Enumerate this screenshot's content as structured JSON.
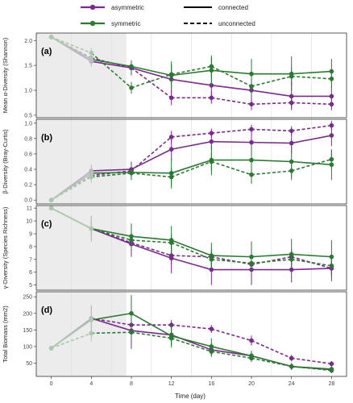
{
  "legend": {
    "asymmetric": "asymmetric",
    "symmetric": "symmetric",
    "connected": "connected",
    "unconnected": "unconnected"
  },
  "colors": {
    "asymmetric": "#7b2a8e",
    "symmetric": "#2a7a32",
    "asymmetric_faded": "#c4a8cc",
    "symmetric_faded": "#a9c9ab",
    "shade": "#ececec",
    "panel_border": "#333333",
    "grid": "#dddddd"
  },
  "xlabel": "Time (day)",
  "chart_data": [
    {
      "type": "line",
      "panel_label": "(a)",
      "ylabel": "Mean α-Diversity (Shannon)",
      "x": [
        0,
        4,
        8,
        12,
        16,
        20,
        24,
        28
      ],
      "xlim": [
        -1.5,
        29.5
      ],
      "ylim": [
        0.45,
        2.15
      ],
      "yticks": [
        0.5,
        1.0,
        1.5,
        2.0
      ],
      "ytick_labels": [
        "0.5",
        "1.0",
        "1.5",
        "2.0"
      ],
      "shaded_until_x": 7.5,
      "series": [
        {
          "name": "asymmetric",
          "style": "connected",
          "values": [
            2.07,
            1.58,
            1.45,
            1.22,
            1.1,
            1.0,
            0.88,
            0.88
          ],
          "errors": [
            0.02,
            0.1,
            0.12,
            0.28,
            0.3,
            0.25,
            0.28,
            0.22
          ]
        },
        {
          "name": "asymmetric",
          "style": "unconnected",
          "values": [
            2.07,
            1.65,
            1.45,
            0.85,
            0.85,
            0.72,
            0.75,
            0.72
          ],
          "errors": [
            0.02,
            0.12,
            0.15,
            0.15,
            0.12,
            0.12,
            0.12,
            0.12
          ]
        },
        {
          "name": "symmetric",
          "style": "connected",
          "values": [
            2.07,
            1.62,
            1.48,
            1.3,
            1.4,
            1.33,
            1.33,
            1.38
          ],
          "errors": [
            0.02,
            0.1,
            0.12,
            0.28,
            0.3,
            0.3,
            0.35,
            0.25
          ]
        },
        {
          "name": "symmetric",
          "style": "unconnected",
          "values": [
            2.07,
            1.75,
            1.05,
            1.32,
            1.48,
            1.08,
            1.28,
            1.23
          ],
          "errors": [
            0.02,
            0.1,
            0.12,
            0.2,
            0.18,
            0.2,
            0.18,
            0.18
          ]
        }
      ]
    },
    {
      "type": "line",
      "panel_label": "(b)",
      "ylabel": "β-Diversity (Bray-Curtis)",
      "x": [
        0,
        4,
        8,
        12,
        16,
        20,
        24,
        28
      ],
      "xlim": [
        -1.5,
        29.5
      ],
      "ylim": [
        -0.05,
        1.05
      ],
      "yticks": [
        0.0,
        0.2,
        0.4,
        0.6,
        0.8,
        1.0
      ],
      "ytick_labels": [
        "0.0",
        "0.2",
        "0.4",
        "0.6",
        "0.8",
        "1.0"
      ],
      "shaded_until_x": 7.5,
      "series": [
        {
          "name": "asymmetric",
          "style": "connected",
          "values": [
            0.0,
            0.38,
            0.4,
            0.66,
            0.76,
            0.75,
            0.74,
            0.84
          ],
          "errors": [
            0.01,
            0.08,
            0.1,
            0.15,
            0.12,
            0.14,
            0.14,
            0.14
          ]
        },
        {
          "name": "asymmetric",
          "style": "unconnected",
          "values": [
            0.0,
            0.32,
            0.38,
            0.82,
            0.87,
            0.92,
            0.9,
            0.97
          ],
          "errors": [
            0.01,
            0.06,
            0.06,
            0.08,
            0.06,
            0.06,
            0.06,
            0.06
          ]
        },
        {
          "name": "symmetric",
          "style": "connected",
          "values": [
            0.0,
            0.35,
            0.36,
            0.35,
            0.52,
            0.52,
            0.5,
            0.46
          ],
          "errors": [
            0.01,
            0.08,
            0.1,
            0.2,
            0.2,
            0.2,
            0.2,
            0.2
          ]
        },
        {
          "name": "symmetric",
          "style": "unconnected",
          "values": [
            0.0,
            0.3,
            0.35,
            0.3,
            0.5,
            0.33,
            0.38,
            0.53
          ],
          "errors": [
            0.01,
            0.07,
            0.08,
            0.12,
            0.12,
            0.12,
            0.12,
            0.12
          ]
        }
      ]
    },
    {
      "type": "line",
      "panel_label": "(c)",
      "ylabel": "γ-Diversity (Species Richness)",
      "x": [
        0,
        4,
        8,
        12,
        16,
        20,
        24,
        28
      ],
      "xlim": [
        -1.5,
        29.5
      ],
      "ylim": [
        4.6,
        11.2
      ],
      "yticks": [
        5,
        6,
        7,
        8,
        9,
        10,
        11
      ],
      "ytick_labels": [
        "5",
        "6",
        "7",
        "8",
        "9",
        "10",
        "11"
      ],
      "shaded_until_x": 7.5,
      "series": [
        {
          "name": "asymmetric",
          "style": "connected",
          "values": [
            11.0,
            9.4,
            8.2,
            7.1,
            6.2,
            6.2,
            6.2,
            6.3
          ],
          "errors": [
            0.05,
            1.0,
            1.0,
            1.2,
            1.2,
            1.2,
            1.0,
            1.0
          ]
        },
        {
          "name": "asymmetric",
          "style": "unconnected",
          "values": [
            11.0,
            9.4,
            8.3,
            7.3,
            7.2,
            6.6,
            7.2,
            6.3
          ],
          "errors": [
            0.05,
            0.6,
            0.6,
            0.7,
            0.6,
            0.6,
            0.6,
            0.6
          ]
        },
        {
          "name": "symmetric",
          "style": "connected",
          "values": [
            11.0,
            9.4,
            8.8,
            8.5,
            7.3,
            7.2,
            7.4,
            7.2
          ],
          "errors": [
            0.05,
            1.0,
            1.0,
            1.1,
            1.0,
            1.2,
            1.2,
            1.3
          ]
        },
        {
          "name": "symmetric",
          "style": "unconnected",
          "values": [
            11.0,
            9.4,
            8.5,
            8.3,
            7.0,
            6.7,
            7.0,
            6.5
          ],
          "errors": [
            0.05,
            0.6,
            0.6,
            0.6,
            0.6,
            0.6,
            0.6,
            0.6
          ]
        }
      ]
    },
    {
      "type": "line",
      "panel_label": "(d)",
      "ylabel": "Total Biomass (mm2)",
      "x": [
        0,
        4,
        8,
        12,
        16,
        20,
        24,
        28
      ],
      "xlim": [
        -1.5,
        29.5
      ],
      "ylim": [
        10,
        265
      ],
      "yticks": [
        50,
        100,
        150,
        200,
        250
      ],
      "ytick_labels": [
        "50",
        "100",
        "150",
        "200",
        "250"
      ],
      "shaded_until_x": 7.5,
      "series": [
        {
          "name": "asymmetric",
          "style": "connected",
          "values": [
            95,
            185,
            148,
            135,
            90,
            72,
            40,
            30
          ],
          "errors": [
            2,
            40,
            55,
            30,
            20,
            15,
            10,
            8
          ]
        },
        {
          "name": "asymmetric",
          "style": "unconnected",
          "values": [
            95,
            185,
            165,
            165,
            153,
            118,
            65,
            48
          ],
          "errors": [
            2,
            30,
            20,
            15,
            12,
            15,
            10,
            8
          ]
        },
        {
          "name": "symmetric",
          "style": "connected",
          "values": [
            95,
            180,
            200,
            132,
            100,
            72,
            40,
            32
          ],
          "errors": [
            2,
            40,
            55,
            35,
            25,
            15,
            10,
            8
          ]
        },
        {
          "name": "symmetric",
          "style": "unconnected",
          "values": [
            95,
            140,
            143,
            125,
            85,
            65,
            40,
            28
          ],
          "errors": [
            2,
            25,
            20,
            20,
            15,
            12,
            10,
            8
          ]
        }
      ]
    }
  ]
}
